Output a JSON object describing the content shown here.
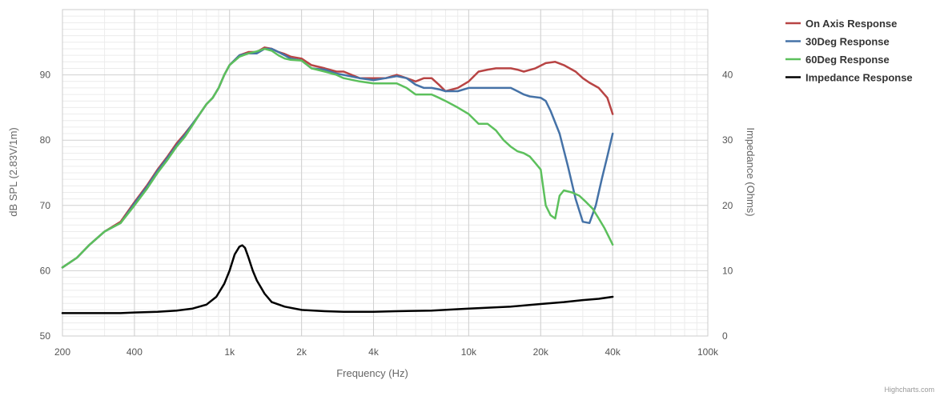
{
  "chart_data": {
    "type": "line",
    "title": "",
    "xlabel": "Frequency (Hz)",
    "ylabel": "dB SPL  (2.83V/1m)",
    "y2label": "Impedance (Ohms)",
    "x_scale": "log",
    "xlim": [
      200,
      100000
    ],
    "ylim": [
      50,
      100
    ],
    "y2lim": [
      0,
      50
    ],
    "x_ticks": [
      200,
      400,
      1000,
      2000,
      4000,
      10000,
      20000,
      40000,
      100000
    ],
    "x_tick_labels": [
      "200",
      "400",
      "1k",
      "2k",
      "4k",
      "10k",
      "20k",
      "40k",
      "100k"
    ],
    "y_ticks": [
      50,
      60,
      70,
      80,
      90
    ],
    "y2_ticks": [
      0,
      10,
      20,
      30,
      40
    ],
    "grid": true,
    "legend_position": "top-right",
    "series": [
      {
        "name": "On Axis Response",
        "color": "#b84444",
        "axis": "left",
        "points": [
          [
            200,
            60.5
          ],
          [
            230,
            62
          ],
          [
            260,
            64
          ],
          [
            300,
            66
          ],
          [
            350,
            67.5
          ],
          [
            400,
            70.5
          ],
          [
            450,
            73
          ],
          [
            500,
            75.5
          ],
          [
            550,
            77.5
          ],
          [
            600,
            79.5
          ],
          [
            650,
            81
          ],
          [
            700,
            82.5
          ],
          [
            750,
            84
          ],
          [
            800,
            85.5
          ],
          [
            850,
            86.5
          ],
          [
            900,
            88
          ],
          [
            950,
            90
          ],
          [
            1000,
            91.5
          ],
          [
            1100,
            93
          ],
          [
            1200,
            93.5
          ],
          [
            1300,
            93.5
          ],
          [
            1400,
            94.2
          ],
          [
            1500,
            94
          ],
          [
            1600,
            93.5
          ],
          [
            1700,
            93.2
          ],
          [
            1800,
            92.8
          ],
          [
            2000,
            92.5
          ],
          [
            2200,
            91.5
          ],
          [
            2500,
            91
          ],
          [
            2800,
            90.5
          ],
          [
            3000,
            90.5
          ],
          [
            3500,
            89.5
          ],
          [
            4000,
            89.5
          ],
          [
            4500,
            89.5
          ],
          [
            5000,
            90
          ],
          [
            5500,
            89.5
          ],
          [
            6000,
            89
          ],
          [
            6500,
            89.5
          ],
          [
            7000,
            89.5
          ],
          [
            7500,
            88.5
          ],
          [
            8000,
            87.5
          ],
          [
            9000,
            88
          ],
          [
            10000,
            89
          ],
          [
            11000,
            90.5
          ],
          [
            12000,
            90.8
          ],
          [
            13000,
            91
          ],
          [
            14000,
            91
          ],
          [
            15000,
            91
          ],
          [
            16000,
            90.8
          ],
          [
            17000,
            90.5
          ],
          [
            19000,
            91
          ],
          [
            21000,
            91.8
          ],
          [
            23000,
            92
          ],
          [
            25000,
            91.5
          ],
          [
            28000,
            90.5
          ],
          [
            30000,
            89.5
          ],
          [
            32000,
            88.8
          ],
          [
            35000,
            88
          ],
          [
            38000,
            86.5
          ],
          [
            40000,
            84
          ]
        ]
      },
      {
        "name": "30Deg Response",
        "color": "#4572a7",
        "axis": "left",
        "points": [
          [
            200,
            60.5
          ],
          [
            230,
            62
          ],
          [
            260,
            64
          ],
          [
            300,
            66
          ],
          [
            350,
            67.3
          ],
          [
            400,
            70.3
          ],
          [
            450,
            72.8
          ],
          [
            500,
            75.3
          ],
          [
            550,
            77.3
          ],
          [
            600,
            79.2
          ],
          [
            650,
            80.8
          ],
          [
            700,
            82.5
          ],
          [
            750,
            84
          ],
          [
            800,
            85.5
          ],
          [
            850,
            86.5
          ],
          [
            900,
            88
          ],
          [
            950,
            90
          ],
          [
            1000,
            91.5
          ],
          [
            1100,
            93
          ],
          [
            1200,
            93.3
          ],
          [
            1300,
            93.3
          ],
          [
            1400,
            94
          ],
          [
            1500,
            94
          ],
          [
            1600,
            93.5
          ],
          [
            1700,
            93
          ],
          [
            1800,
            92.5
          ],
          [
            2000,
            92.2
          ],
          [
            2200,
            91
          ],
          [
            2500,
            90.8
          ],
          [
            2800,
            90.2
          ],
          [
            3000,
            90
          ],
          [
            3500,
            89.5
          ],
          [
            4000,
            89.2
          ],
          [
            4500,
            89.5
          ],
          [
            5000,
            89.8
          ],
          [
            5500,
            89.5
          ],
          [
            6000,
            88.5
          ],
          [
            6500,
            88
          ],
          [
            7000,
            88
          ],
          [
            7500,
            87.8
          ],
          [
            8000,
            87.5
          ],
          [
            9000,
            87.5
          ],
          [
            10000,
            88
          ],
          [
            11000,
            88
          ],
          [
            12000,
            88
          ],
          [
            13000,
            88
          ],
          [
            14000,
            88
          ],
          [
            15000,
            88
          ],
          [
            16000,
            87.5
          ],
          [
            17000,
            87
          ],
          [
            18000,
            86.7
          ],
          [
            20000,
            86.5
          ],
          [
            21000,
            86
          ],
          [
            22000,
            84.5
          ],
          [
            24000,
            81
          ],
          [
            26000,
            76
          ],
          [
            28000,
            71
          ],
          [
            30000,
            67.5
          ],
          [
            32000,
            67.3
          ],
          [
            34000,
            70
          ],
          [
            36000,
            74
          ],
          [
            38000,
            77.5
          ],
          [
            40000,
            81
          ]
        ]
      },
      {
        "name": "60Deg Response",
        "color": "#5cc05c",
        "axis": "left",
        "points": [
          [
            200,
            60.5
          ],
          [
            230,
            62
          ],
          [
            260,
            64
          ],
          [
            300,
            66
          ],
          [
            350,
            67.3
          ],
          [
            400,
            70
          ],
          [
            450,
            72.5
          ],
          [
            500,
            75
          ],
          [
            550,
            77
          ],
          [
            600,
            79
          ],
          [
            650,
            80.5
          ],
          [
            700,
            82.3
          ],
          [
            750,
            84
          ],
          [
            800,
            85.5
          ],
          [
            850,
            86.5
          ],
          [
            900,
            88
          ],
          [
            950,
            90
          ],
          [
            1000,
            91.5
          ],
          [
            1100,
            92.8
          ],
          [
            1200,
            93.3
          ],
          [
            1300,
            93.6
          ],
          [
            1400,
            94
          ],
          [
            1500,
            93.7
          ],
          [
            1600,
            93
          ],
          [
            1700,
            92.5
          ],
          [
            1800,
            92.3
          ],
          [
            2000,
            92.2
          ],
          [
            2200,
            91
          ],
          [
            2500,
            90.5
          ],
          [
            2800,
            90
          ],
          [
            3000,
            89.5
          ],
          [
            3500,
            89
          ],
          [
            4000,
            88.7
          ],
          [
            4500,
            88.7
          ],
          [
            5000,
            88.7
          ],
          [
            5500,
            88
          ],
          [
            6000,
            87
          ],
          [
            6500,
            87
          ],
          [
            7000,
            87
          ],
          [
            7500,
            86.5
          ],
          [
            8000,
            86
          ],
          [
            9000,
            85
          ],
          [
            10000,
            84
          ],
          [
            11000,
            82.5
          ],
          [
            12000,
            82.5
          ],
          [
            13000,
            81.5
          ],
          [
            14000,
            80
          ],
          [
            15000,
            79
          ],
          [
            16000,
            78.3
          ],
          [
            17000,
            78
          ],
          [
            18000,
            77.5
          ],
          [
            19000,
            76.5
          ],
          [
            20000,
            75.5
          ],
          [
            21000,
            70
          ],
          [
            22000,
            68.5
          ],
          [
            23000,
            68
          ],
          [
            24000,
            71.5
          ],
          [
            25000,
            72.3
          ],
          [
            27000,
            72
          ],
          [
            29000,
            71.5
          ],
          [
            31000,
            70.5
          ],
          [
            33000,
            69.5
          ],
          [
            35000,
            68
          ],
          [
            37000,
            66.5
          ],
          [
            40000,
            64
          ]
        ]
      },
      {
        "name": "Impedance Response",
        "color": "#000000",
        "axis": "right",
        "points": [
          [
            200,
            3.5
          ],
          [
            250,
            3.5
          ],
          [
            300,
            3.5
          ],
          [
            350,
            3.5
          ],
          [
            400,
            3.6
          ],
          [
            500,
            3.7
          ],
          [
            600,
            3.9
          ],
          [
            700,
            4.2
          ],
          [
            800,
            4.8
          ],
          [
            880,
            6
          ],
          [
            950,
            8
          ],
          [
            1000,
            10
          ],
          [
            1050,
            12.5
          ],
          [
            1100,
            13.7
          ],
          [
            1130,
            13.9
          ],
          [
            1160,
            13.5
          ],
          [
            1200,
            12
          ],
          [
            1250,
            10
          ],
          [
            1300,
            8.5
          ],
          [
            1400,
            6.5
          ],
          [
            1500,
            5.2
          ],
          [
            1700,
            4.5
          ],
          [
            2000,
            4
          ],
          [
            2500,
            3.8
          ],
          [
            3000,
            3.7
          ],
          [
            4000,
            3.7
          ],
          [
            5000,
            3.8
          ],
          [
            7000,
            3.9
          ],
          [
            10000,
            4.2
          ],
          [
            15000,
            4.5
          ],
          [
            20000,
            4.9
          ],
          [
            25000,
            5.2
          ],
          [
            30000,
            5.5
          ],
          [
            35000,
            5.7
          ],
          [
            40000,
            6
          ]
        ]
      }
    ]
  },
  "credit": "Highcharts.com"
}
